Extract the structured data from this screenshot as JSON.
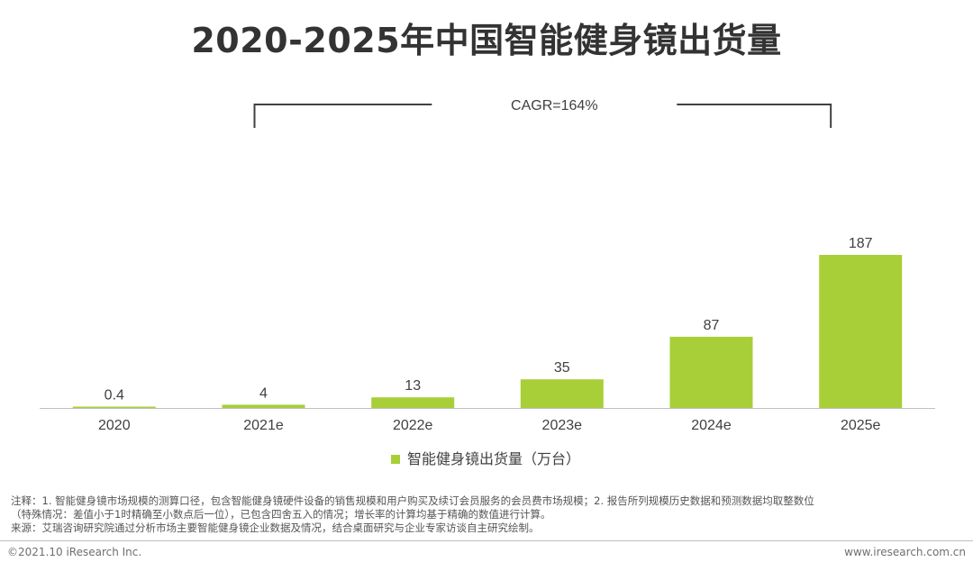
{
  "title": "2020-2025年中国智能健身镜出货量",
  "colors": {
    "bar": "#a8cf38",
    "axis": "#bfbfbf",
    "bracket": "#404040",
    "text": "#404040"
  },
  "chart_data": {
    "type": "bar",
    "categories": [
      "2020",
      "2021e",
      "2022e",
      "2023e",
      "2024e",
      "2025e"
    ],
    "values": [
      0.4,
      4,
      13,
      35,
      87,
      187
    ],
    "value_labels": [
      "0.4",
      "4",
      "13",
      "35",
      "87",
      "187"
    ],
    "series_name": "智能健身镜出货量（万台）",
    "annotation": "CAGR=164%",
    "ylim": [
      0,
      187
    ],
    "legend_position": "bottom-center"
  },
  "notes": {
    "line1": "注释：1. 智能健身镜市场规模的测算口径，包含智能健身镜硬件设备的销售规模和用户购买及续订会员服务的会员费市场规模；2. 报告所列规模历史数据和预测数据均取整数位",
    "line2": "（特殊情况：差值小于1时精确至小数点后一位），已包含四舍五入的情况；增长率的计算均基于精确的数值进行计算。",
    "line3": "来源：艾瑞咨询研究院通过分析市场主要智能健身镜企业数据及情况，结合桌面研究与企业专家访谈自主研究绘制。"
  },
  "footer": {
    "copyright": "©2021.10 iResearch Inc.",
    "url": "www.iresearch.com.cn"
  }
}
